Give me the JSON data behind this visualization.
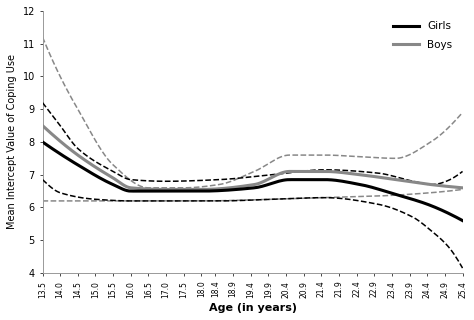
{
  "title": "",
  "xlabel": "Age (in years)",
  "ylabel": "Mean Intercept Value of Coping Use",
  "ylim": [
    4,
    12
  ],
  "yticks": [
    4,
    5,
    6,
    7,
    8,
    9,
    10,
    11,
    12
  ],
  "age_start": 13.5,
  "age_end": 25.4,
  "n_points": 200,
  "girls_color": "#000000",
  "boys_color": "#888888",
  "legend_girls": "Girls",
  "legend_boys": "Boys",
  "background_color": "#ffffff",
  "xtick_labels": [
    "13.5",
    "14.0",
    "14.5",
    "15.0",
    "15.5",
    "16.0",
    "16.5",
    "17.0",
    "17.5",
    "18.0",
    "18.4",
    "18.9",
    "19.4",
    "19.9",
    "20.4",
    "20.9",
    "21.4",
    "21.9",
    "22.4",
    "22.9",
    "23.4",
    "23.9",
    "24.4",
    "24.9",
    "25.4"
  ]
}
